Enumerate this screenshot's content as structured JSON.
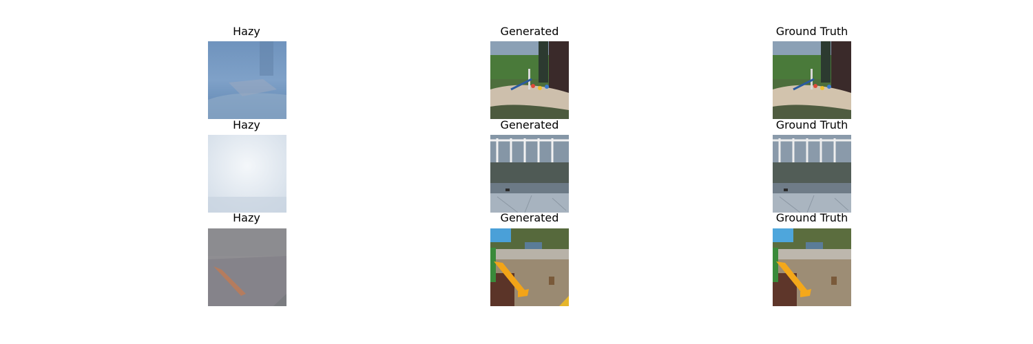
{
  "figure": {
    "rows": [
      {
        "hazy": {
          "title": "Hazy",
          "scene": "hazy playground sandbox",
          "tint": "#7f9ec2"
        },
        "generated": {
          "title": "Generated",
          "scene": "playground sandbox with toys"
        },
        "ground_truth": {
          "title": "Ground Truth",
          "scene": "playground sandbox with toys"
        }
      },
      {
        "hazy": {
          "title": "Hazy",
          "scene": "dense white haze over yard",
          "tint": "#dde6ee"
        },
        "generated": {
          "title": "Generated",
          "scene": "pergola, hedge and stone pavement"
        },
        "ground_truth": {
          "title": "Ground Truth",
          "scene": "pergola, hedge and stone pavement"
        }
      },
      {
        "hazy": {
          "title": "Hazy",
          "scene": "grey haze over playground slide",
          "tint": "#8f8e92"
        },
        "generated": {
          "title": "Generated",
          "scene": "yellow slide on rubber playground"
        },
        "ground_truth": {
          "title": "Ground Truth",
          "scene": "yellow slide on rubber playground"
        }
      }
    ]
  }
}
